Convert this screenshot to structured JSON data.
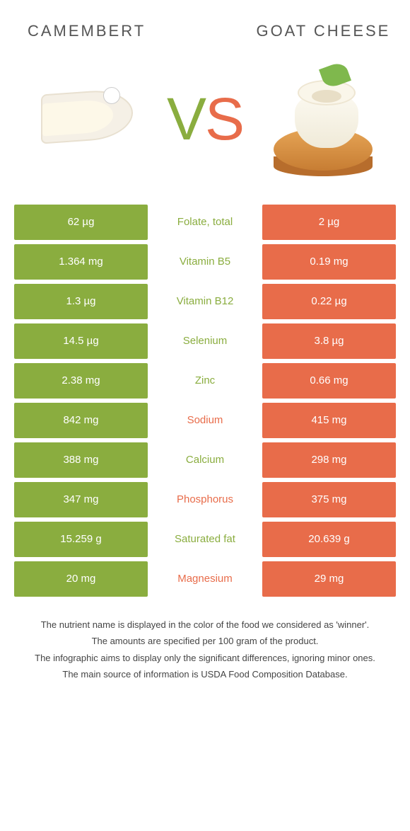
{
  "header": {
    "left_title": "CAMEMBERT",
    "right_title": "GOAT CHEESE",
    "vs_v": "V",
    "vs_s": "S"
  },
  "colors": {
    "left": "#8aad3f",
    "right": "#e86c4a",
    "left_text": "#8aad3f",
    "right_text": "#e86c4a",
    "background": "#ffffff"
  },
  "table": {
    "type": "comparison-table",
    "rows": [
      {
        "left": "62 µg",
        "label": "Folate, total",
        "right": "2 µg",
        "winner": "left"
      },
      {
        "left": "1.364 mg",
        "label": "Vitamin B5",
        "right": "0.19 mg",
        "winner": "left"
      },
      {
        "left": "1.3 µg",
        "label": "Vitamin B12",
        "right": "0.22 µg",
        "winner": "left"
      },
      {
        "left": "14.5 µg",
        "label": "Selenium",
        "right": "3.8 µg",
        "winner": "left"
      },
      {
        "left": "2.38 mg",
        "label": "Zinc",
        "right": "0.66 mg",
        "winner": "left"
      },
      {
        "left": "842 mg",
        "label": "Sodium",
        "right": "415 mg",
        "winner": "right"
      },
      {
        "left": "388 mg",
        "label": "Calcium",
        "right": "298 mg",
        "winner": "left"
      },
      {
        "left": "347 mg",
        "label": "Phosphorus",
        "right": "375 mg",
        "winner": "right"
      },
      {
        "left": "15.259 g",
        "label": "Saturated fat",
        "right": "20.639 g",
        "winner": "left"
      },
      {
        "left": "20 mg",
        "label": "Magnesium",
        "right": "29 mg",
        "winner": "right"
      }
    ]
  },
  "footer": {
    "line1": "The nutrient name is displayed in the color of the food we considered as 'winner'.",
    "line2": "The amounts are specified per 100 gram of the product.",
    "line3": "The infographic aims to display only the significant differences, ignoring minor ones.",
    "line4": "The main source of information is USDA Food Composition Database."
  }
}
